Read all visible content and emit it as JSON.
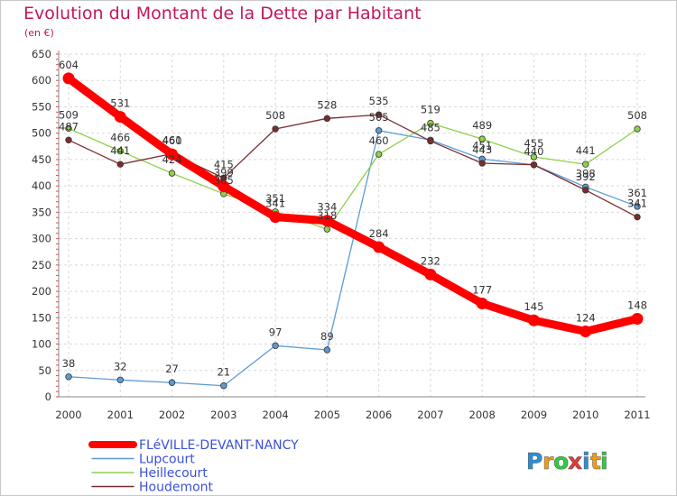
{
  "title": "Evolution du Montant de la Dette par Habitant",
  "unit_label": "(en €)",
  "brand": {
    "text": "Proxiti",
    "letters": [
      {
        "ch": "P",
        "color": "#2a8fd6"
      },
      {
        "ch": "r",
        "color": "#f39c12"
      },
      {
        "ch": "o",
        "color": "#2ecc40"
      },
      {
        "ch": "x",
        "color": "#e53935"
      },
      {
        "ch": "i",
        "color": "#2a8fd6"
      },
      {
        "ch": "t",
        "color": "#f39c12"
      },
      {
        "ch": "i",
        "color": "#2ecc40"
      }
    ]
  },
  "chart_data": {
    "type": "line",
    "title": "Evolution du Montant de la Dette par Habitant",
    "xlabel": "",
    "ylabel": "(en €)",
    "ylim": [
      0,
      650
    ],
    "yticks": [
      0,
      50,
      100,
      150,
      200,
      250,
      300,
      350,
      400,
      450,
      500,
      550,
      600,
      650
    ],
    "grid": true,
    "legend_position": "bottom-left",
    "x": [
      "2000",
      "2001",
      "2002",
      "2003",
      "2004",
      "2005",
      "2006",
      "2007",
      "2008",
      "2009",
      "2010",
      "2011"
    ],
    "series": [
      {
        "name": "FLéVILLE-DEVANT-NANCY",
        "color": "#ff0000",
        "emphasis": true,
        "values": [
          604,
          531,
          460,
          399,
          341,
          334,
          284,
          232,
          177,
          145,
          124,
          148
        ],
        "labels": [
          "604",
          "531",
          "460",
          "399",
          "341",
          "334",
          "284",
          "232",
          "177",
          "145",
          "124",
          "148"
        ]
      },
      {
        "name": "Lupcourt",
        "color": "#5b9bd5",
        "emphasis": false,
        "values": [
          38,
          32,
          27,
          21,
          97,
          89,
          505,
          487,
          451,
          440,
          398,
          361
        ],
        "labels": [
          "38",
          "32",
          "27",
          "21",
          "97",
          "89",
          "505",
          "",
          "451",
          "",
          "398",
          "361"
        ]
      },
      {
        "name": "Heillecourt",
        "color": "#8ed14a",
        "emphasis": false,
        "values": [
          509,
          466,
          424,
          385,
          351,
          318,
          460,
          519,
          489,
          455,
          441,
          508
        ],
        "labels": [
          "509",
          "466",
          "424",
          "385",
          "351",
          "318",
          "460",
          "519",
          "489",
          "455",
          "441",
          "508"
        ]
      },
      {
        "name": "Houdemont",
        "color": "#7b2d2d",
        "emphasis": false,
        "values": [
          487,
          441,
          461,
          415,
          508,
          528,
          535,
          485,
          443,
          440,
          392,
          341
        ],
        "labels": [
          "487",
          "441",
          "461",
          "415",
          "508",
          "528",
          "535",
          "485",
          "443",
          "440",
          "392",
          "341"
        ]
      }
    ]
  }
}
